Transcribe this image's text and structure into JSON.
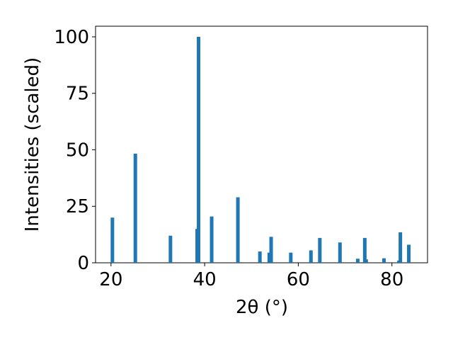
{
  "chart_data": {
    "type": "bar",
    "xlabel": "2θ (°)",
    "ylabel": "Intensities (scaled)",
    "x": [
      20.3,
      25.2,
      32.7,
      38.4,
      38.7,
      41.5,
      47.1,
      51.8,
      53.8,
      54.2,
      58.4,
      62.7,
      64.6,
      68.9,
      72.7,
      74.2,
      74.5,
      78.3,
      81.5,
      81.8,
      83.6
    ],
    "values": [
      20,
      48.3,
      12,
      15,
      100,
      20.5,
      29,
      5,
      4.5,
      11.5,
      4.5,
      5.5,
      11,
      9,
      1.8,
      11,
      1.5,
      2,
      1,
      13.5,
      8
    ],
    "color": "#1f77b4",
    "xlim": [
      16.7,
      87.6
    ],
    "ylim": [
      0,
      104.7
    ],
    "xticks": [
      20,
      40,
      60,
      80
    ],
    "yticks": [
      0,
      25,
      50,
      75,
      100
    ]
  }
}
